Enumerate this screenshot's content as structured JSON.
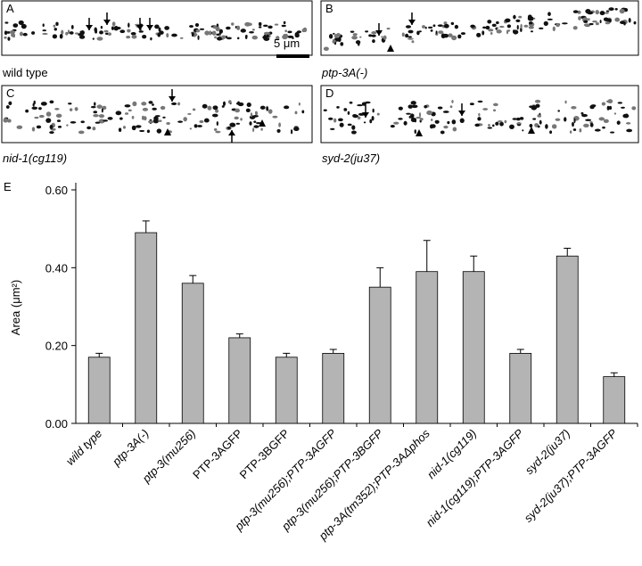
{
  "panels": [
    {
      "label": "A",
      "caption": "wild type"
    },
    {
      "label": "B",
      "caption": "ptp-3A(-)"
    },
    {
      "label": "C",
      "caption": "nid-1(cg119)"
    },
    {
      "label": "D",
      "caption": "syd-2(ju37)"
    }
  ],
  "scale_bar": "5 μm",
  "chart_data": {
    "type": "bar",
    "panel_label": "E",
    "y_label": "Area (μm²)",
    "categories": [
      "wild type",
      "ptp-3A(-)",
      "ptp-3(mu256)",
      "PTP-3AGFP",
      "PTP-3BGFP",
      "ptp-3(mu256);PTP-3AGFP",
      "ptp-3(mu256);PTP-3BGFP",
      "ptp-3A(tm352);PTP-3AΔphos",
      "nid-1(cg119)",
      "nid-1(cg119);PTP-3AGFP",
      "syd-2(ju37)",
      "syd-2(ju37);PTP-3AGFP"
    ],
    "values": [
      0.17,
      0.49,
      0.36,
      0.22,
      0.17,
      0.18,
      0.35,
      0.39,
      0.39,
      0.18,
      0.43,
      0.12
    ],
    "errors": [
      0.01,
      0.03,
      0.02,
      0.01,
      0.01,
      0.01,
      0.05,
      0.08,
      0.04,
      0.01,
      0.02,
      0.01
    ],
    "color": "#b4b4b4",
    "ylim": [
      0,
      0.6
    ],
    "yticks": [
      {
        "value": 0,
        "label": "0.00"
      },
      {
        "value": 0.2,
        "label": "0.20"
      },
      {
        "value": 0.4,
        "label": "0.40"
      },
      {
        "value": 0.6,
        "label": "0.60"
      }
    ]
  }
}
